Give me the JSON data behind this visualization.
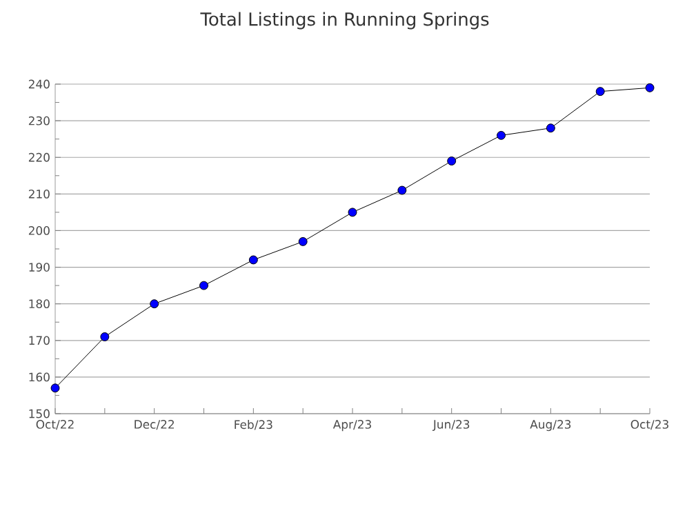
{
  "chart_data": {
    "type": "line",
    "title": "Total Listings in Running Springs",
    "categories": [
      "Oct/22",
      null,
      "Dec/22",
      null,
      "Feb/23",
      null,
      "Apr/23",
      null,
      "Jun/23",
      null,
      "Aug/23",
      null,
      "Oct/23"
    ],
    "series": [
      {
        "color": "#0000ff",
        "values": [
          157,
          171,
          180,
          185,
          192,
          197,
          205,
          211,
          219,
          226,
          228,
          238,
          239
        ]
      }
    ],
    "ylim": [
      150,
      240
    ],
    "yticks": [
      150,
      160,
      170,
      180,
      190,
      200,
      210,
      220,
      230,
      240
    ],
    "grid": "y",
    "marker": "circle",
    "line_style": "solid"
  }
}
